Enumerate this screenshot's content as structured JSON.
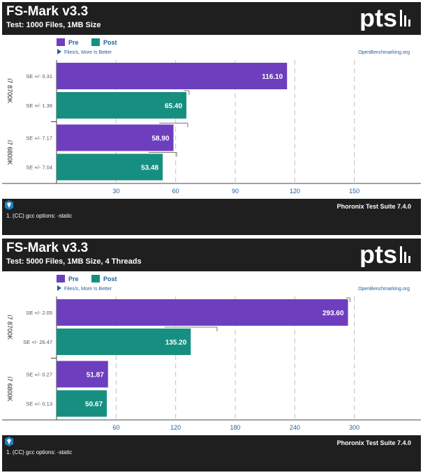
{
  "colors": {
    "pre": "#6d3fbf",
    "post": "#178f80",
    "frame": "#1f1f1f",
    "grid": "#bfbfbf"
  },
  "charts": [
    {
      "title": "FS-Mark v3.3",
      "subtitle": "Test: 1000 Files, 1MB Size",
      "legend": [
        "Pre",
        "Post"
      ],
      "direction_note": "Files/s, More Is Better",
      "source": "OpenBenchmarking.org",
      "footer_suite": "Phoronix Test Suite 7.4.0",
      "footer_note": "1. (CC) gcc options: -static"
    },
    {
      "title": "FS-Mark v3.3",
      "subtitle": "Test: 5000 Files, 1MB Size, 4 Threads",
      "legend": [
        "Pre",
        "Post"
      ],
      "direction_note": "Files/s, More Is Better",
      "source": "OpenBenchmarking.org",
      "footer_suite": "Phoronix Test Suite 7.4.0",
      "footer_note": "1. (CC) gcc options: -static"
    }
  ],
  "chart_data": [
    {
      "type": "bar",
      "orientation": "horizontal",
      "title": "FS-Mark v3.3",
      "subtitle": "Test: 1000 Files, 1MB Size",
      "xlabel": "Files/s, More Is Better",
      "categories": [
        "i7 8700K",
        "i7 6800K"
      ],
      "series": [
        {
          "name": "Pre",
          "values": [
            116.1,
            58.9
          ],
          "se": [
            "SE +/- 0.31",
            "SE +/- 7.17"
          ],
          "labels": [
            "116.10",
            "58.90"
          ]
        },
        {
          "name": "Post",
          "values": [
            65.4,
            53.48
          ],
          "se": [
            "SE +/- 1.36",
            "SE +/- 7.04"
          ],
          "labels": [
            "65.40",
            "53.48"
          ]
        }
      ],
      "xticks": [
        30,
        60,
        90,
        120,
        150
      ],
      "xlim": [
        0,
        180
      ],
      "grid": true,
      "legend_position": "top-left"
    },
    {
      "type": "bar",
      "orientation": "horizontal",
      "title": "FS-Mark v3.3",
      "subtitle": "Test: 5000 Files, 1MB Size, 4 Threads",
      "xlabel": "Files/s, More Is Better",
      "categories": [
        "i7 8700K",
        "i7 6800K"
      ],
      "series": [
        {
          "name": "Pre",
          "values": [
            293.6,
            51.87
          ],
          "se": [
            "SE +/- 2.05",
            "SE +/- 0.27"
          ],
          "labels": [
            "293.60",
            "51.87"
          ]
        },
        {
          "name": "Post",
          "values": [
            135.2,
            50.67
          ],
          "se": [
            "SE +/- 26.47",
            "SE +/- 0.13"
          ],
          "labels": [
            "135.20",
            "50.67"
          ]
        }
      ],
      "xticks": [
        60,
        120,
        180,
        240,
        300
      ],
      "xlim": [
        0,
        360
      ],
      "grid": true,
      "legend_position": "top-left"
    }
  ]
}
